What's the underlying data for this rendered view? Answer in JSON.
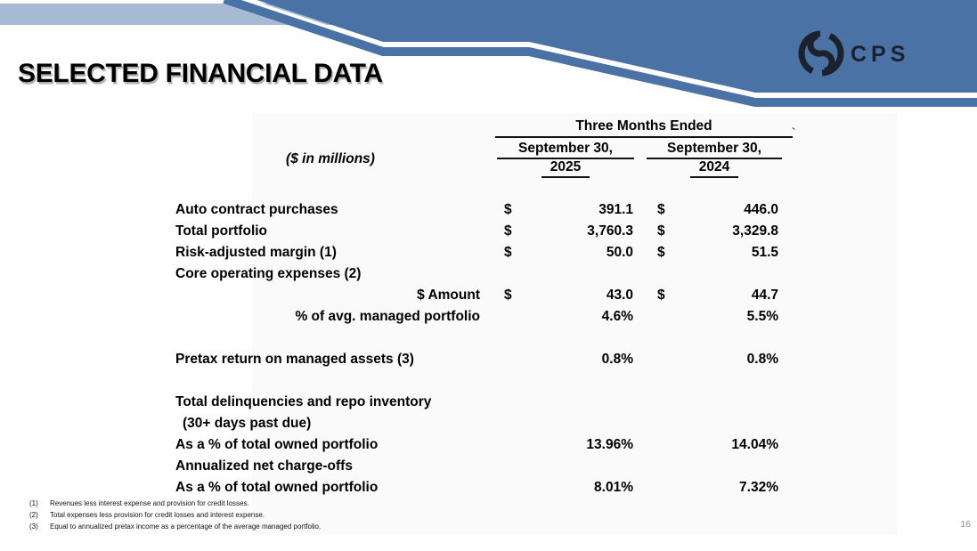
{
  "slide": {
    "title": "SELECTED FINANCIAL DATA",
    "page_number": "16",
    "stray_mark": "`"
  },
  "logo": {
    "text": "CPS"
  },
  "colors": {
    "banner_dark": "#4a72a5",
    "banner_light": "#a9bbd4",
    "logo_ink": "#1c222c"
  },
  "table": {
    "units_label": "($ in millions)",
    "span_header": "Three Months Ended",
    "col_headers": [
      {
        "line1": "September 30,",
        "line2": "2025"
      },
      {
        "line1": "September 30,",
        "line2": "2024"
      }
    ],
    "rows": [
      {
        "label": "Auto contract purchases",
        "align": "left",
        "c1": {
          "sym": "$",
          "val": "391.1"
        },
        "c2": {
          "sym": "$",
          "val": "446.0"
        }
      },
      {
        "label": "Total portfolio",
        "align": "left",
        "c1": {
          "sym": "$",
          "val": "3,760.3"
        },
        "c2": {
          "sym": "$",
          "val": "3,329.8"
        }
      },
      {
        "label": "Risk-adjusted margin (1)",
        "align": "left",
        "c1": {
          "sym": "$",
          "val": "50.0"
        },
        "c2": {
          "sym": "$",
          "val": "51.5"
        }
      },
      {
        "label": "Core operating expenses (2)",
        "align": "left"
      },
      {
        "label": "$ Amount",
        "align": "right",
        "c1": {
          "sym": "$",
          "val": "43.0"
        },
        "c2": {
          "sym": "$",
          "val": "44.7"
        }
      },
      {
        "label": "% of avg. managed portfolio",
        "align": "right",
        "c1": {
          "val": "4.6%"
        },
        "c2": {
          "val": "5.5%"
        }
      },
      {
        "spacer": true
      },
      {
        "label": "Pretax return on managed assets (3)",
        "align": "left",
        "c1": {
          "val": "0.8%"
        },
        "c2": {
          "val": "0.8%"
        }
      },
      {
        "spacer": true
      },
      {
        "label": "Total delinquencies and repo inventory",
        "align": "left"
      },
      {
        "label": "(30+ days past due)",
        "align": "indent"
      },
      {
        "label": "As a % of total owned portfolio",
        "align": "left",
        "c1": {
          "val": "13.96%"
        },
        "c2": {
          "val": "14.04%"
        }
      },
      {
        "label": "Annualized net charge-offs",
        "align": "left"
      },
      {
        "label": "As a % of total owned portfolio",
        "align": "left",
        "c1": {
          "val": "8.01%"
        },
        "c2": {
          "val": "7.32%"
        }
      }
    ]
  },
  "footnotes": [
    {
      "num": "(1)",
      "text": "Revenues less interest expense and provision for credit losses."
    },
    {
      "num": "(2)",
      "text": "Total expenses less provision for credit losses and interest expense."
    },
    {
      "num": "(3)",
      "text": "Equal to annualized pretax income as a percentage of the average managed portfolio."
    }
  ]
}
